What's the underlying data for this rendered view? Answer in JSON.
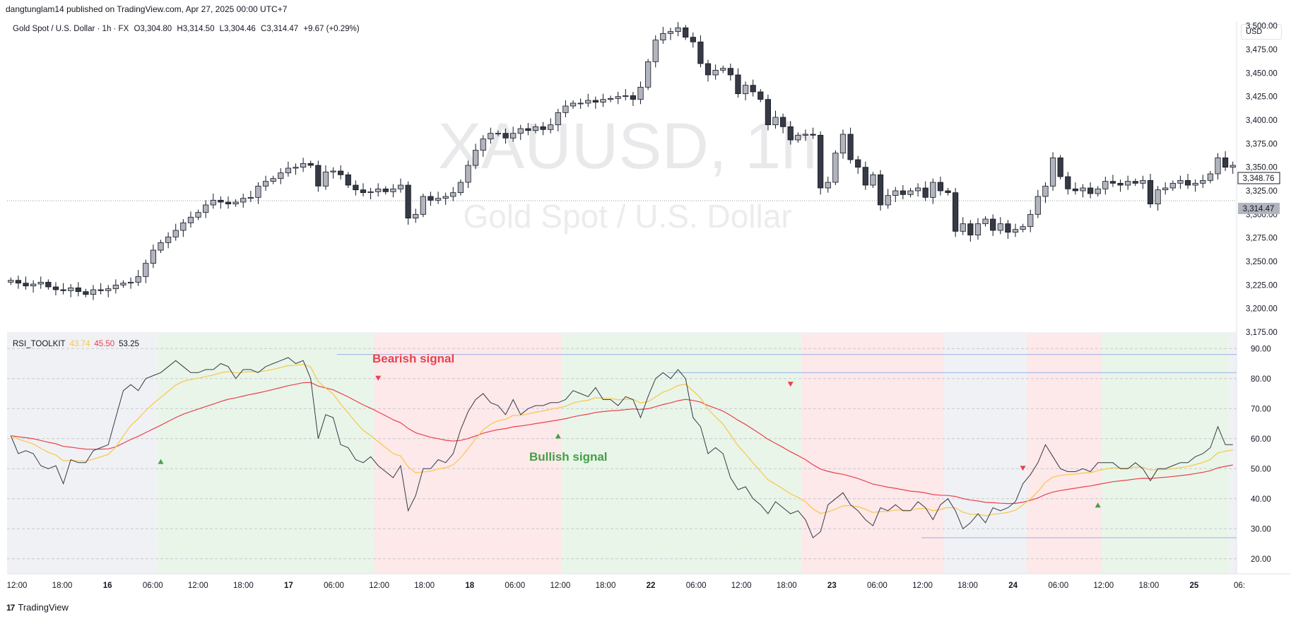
{
  "header": {
    "published": "dangtunglam14 published on TradingView.com, Apr 27, 2025 00:00 UTC+7"
  },
  "legend": {
    "symbol": "Gold Spot / U.S. Dollar · 1h · FX",
    "open": "O3,304.80",
    "high": "H3,314.50",
    "low": "L3,304.46",
    "close": "C3,314.47",
    "change": "+9.67 (+0.29%)"
  },
  "currency_button": "USD",
  "watermark": {
    "symbol": "XAUUSD, 1h",
    "name": "Gold Spot / U.S. Dollar"
  },
  "price_labels": {
    "last": "3,314.47",
    "marker": "3,348.76"
  },
  "rsi_panel": {
    "name": "RSI_TOOLKIT",
    "v1": "43.74",
    "v2": "45.50",
    "v3": "53.25"
  },
  "annotations": {
    "bearish": "Bearish signal",
    "bullish": "Bullish signal"
  },
  "footer": {
    "logo": "17",
    "brand": "TradingView"
  },
  "colors": {
    "up": "#b2b5be",
    "down": "#363a45",
    "rsi": "#363a45",
    "signal": "#f7c748",
    "slow": "#e8424d",
    "green_zone": "#e9f5e9",
    "red_zone": "#fde8ea",
    "grey_zone": "#f0f1f4"
  },
  "chart_data": [
    {
      "type": "candlestick",
      "title": "XAUUSD, 1h",
      "ylim": [
        3175,
        3505
      ],
      "y_ticks": [
        "3,500.00",
        "3,475.00",
        "3,450.00",
        "3,425.00",
        "3,400.00",
        "3,375.00",
        "3,350.00",
        "3,325.00",
        "3,300.00",
        "3,275.00",
        "3,250.00",
        "3,225.00",
        "3,200.00",
        "3,175.00"
      ],
      "x_ticks": [
        "12:00",
        "18:00",
        "16",
        "06:00",
        "12:00",
        "18:00",
        "17",
        "06:00",
        "12:00",
        "18:00",
        "18",
        "06:00",
        "12:00",
        "18:00",
        "22",
        "06:00",
        "12:00",
        "18:00",
        "23",
        "06:00",
        "12:00",
        "18:00",
        "24",
        "06:00",
        "12:00",
        "18:00",
        "25",
        "06:"
      ],
      "close": [
        3230,
        3227,
        3224,
        3226,
        3228,
        3223,
        3220,
        3219,
        3222,
        3218,
        3215,
        3220,
        3219,
        3221,
        3225,
        3227,
        3228,
        3234,
        3248,
        3262,
        3270,
        3276,
        3283,
        3291,
        3297,
        3302,
        3310,
        3315,
        3313,
        3311,
        3313,
        3317,
        3318,
        3330,
        3335,
        3338,
        3344,
        3349,
        3350,
        3354,
        3352,
        3330,
        3345,
        3346,
        3342,
        3331,
        3326,
        3323,
        3324,
        3327,
        3324,
        3327,
        3331,
        3296,
        3300,
        3319,
        3315,
        3317,
        3319,
        3323,
        3334,
        3352,
        3368,
        3380,
        3386,
        3386,
        3381,
        3386,
        3391,
        3389,
        3393,
        3390,
        3395,
        3408,
        3415,
        3418,
        3418,
        3421,
        3419,
        3422,
        3423,
        3425,
        3426,
        3422,
        3435,
        3462,
        3485,
        3492,
        3494,
        3498,
        3488,
        3483,
        3460,
        3448,
        3453,
        3455,
        3448,
        3428,
        3437,
        3430,
        3422,
        3395,
        3403,
        3393,
        3379,
        3384,
        3385,
        3384,
        3328,
        3334,
        3365,
        3385,
        3358,
        3350,
        3331,
        3342,
        3310,
        3320,
        3325,
        3321,
        3325,
        3328,
        3318,
        3334,
        3325,
        3323,
        3282,
        3290,
        3278,
        3290,
        3295,
        3283,
        3290,
        3281,
        3284,
        3287,
        3300,
        3319,
        3330,
        3360,
        3340,
        3327,
        3325,
        3328,
        3322,
        3327,
        3335,
        3333,
        3331,
        3335,
        3333,
        3336,
        3311,
        3326,
        3328,
        3333,
        3336,
        3331,
        3333,
        3336,
        3343,
        3360,
        3350,
        3352
      ]
    },
    {
      "type": "line",
      "title": "RSI_TOOLKIT",
      "ylim": [
        15,
        95
      ],
      "y_ticks": [
        "90.00",
        "80.00",
        "70.00",
        "60.00",
        "50.00",
        "40.00",
        "30.00",
        "20.00"
      ],
      "rsi": [
        61,
        55,
        56,
        55,
        51,
        50,
        51,
        45,
        53,
        52,
        52,
        56,
        57,
        58,
        67,
        76,
        78,
        76,
        80,
        81,
        82,
        84,
        86,
        84,
        82,
        82,
        83,
        83,
        85,
        84,
        80,
        83,
        83,
        82,
        84,
        85,
        86,
        87,
        85,
        86,
        80,
        60,
        68,
        67,
        58,
        57,
        53,
        52,
        54,
        51,
        49,
        47,
        51,
        36,
        41,
        50,
        50,
        53,
        52,
        55,
        63,
        69,
        73,
        75,
        72,
        71,
        68,
        73,
        68,
        70,
        71,
        71,
        72,
        72,
        73,
        76,
        75,
        74,
        77,
        73,
        73,
        71,
        74,
        73,
        67,
        74,
        80,
        82,
        80,
        83,
        80,
        67,
        64,
        55,
        57,
        55,
        47,
        43,
        44,
        40,
        38,
        35,
        39,
        37,
        35,
        36,
        33,
        27,
        29,
        38,
        40,
        42,
        38,
        36,
        33,
        31,
        37,
        36,
        38,
        36,
        36,
        39,
        37,
        33,
        38,
        40,
        36,
        30,
        32,
        35,
        32,
        37,
        36,
        37,
        39,
        45,
        48,
        52,
        58,
        54,
        50,
        49,
        49,
        50,
        49,
        52,
        52,
        52,
        50,
        50,
        52,
        50,
        46,
        50,
        50,
        51,
        52,
        52,
        54,
        55,
        57,
        64,
        58,
        58
      ]
    }
  ]
}
